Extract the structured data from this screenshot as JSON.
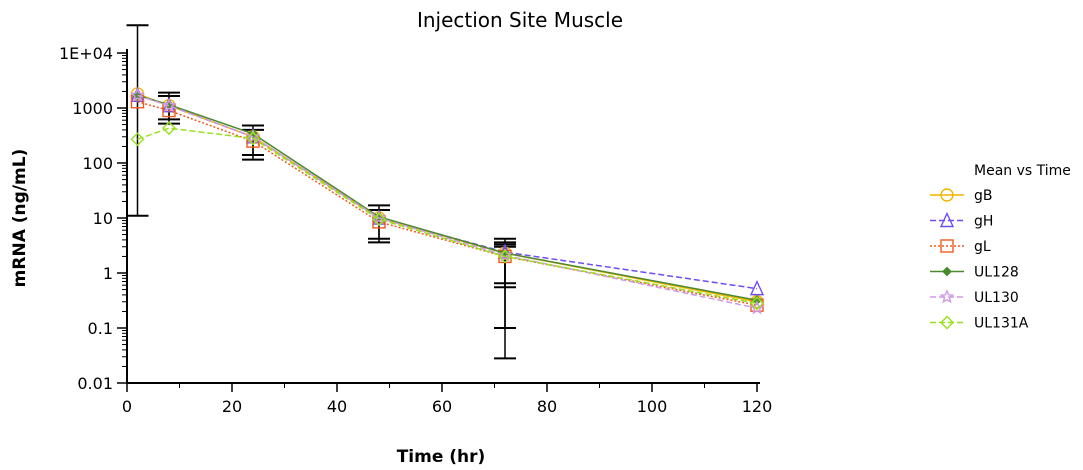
{
  "chart_data": {
    "type": "line",
    "title": "Injection Site Muscle",
    "xlabel": "Time (hr)",
    "ylabel": "mRNA (ng/mL)",
    "xlim": [
      0,
      120
    ],
    "ylim": [
      0.01,
      10000
    ],
    "yscale": "log",
    "grid": false,
    "legend_position": "right",
    "legend_title": "Mean vs Time",
    "x_ticks": [
      0,
      20,
      40,
      60,
      80,
      100,
      120
    ],
    "x_tick_labels": [
      "0",
      "20",
      "40",
      "60",
      "80",
      "100",
      "120"
    ],
    "y_ticks": [
      0.01,
      0.1,
      1,
      10,
      100,
      1000,
      10000
    ],
    "y_tick_labels": [
      "0.01",
      "0.1",
      "1",
      "10",
      "100",
      "1000",
      "1E+04"
    ],
    "x": [
      2,
      8,
      24,
      48,
      72,
      120
    ],
    "series": [
      {
        "name": "gB",
        "color": "#f0b400",
        "marker": "circle",
        "dash": "solid",
        "values": [
          1800,
          1100,
          300,
          10,
          2.3,
          0.3
        ]
      },
      {
        "name": "gH",
        "color": "#6f4cf5",
        "marker": "triangle",
        "dash": "dash",
        "values": [
          1700,
          1100,
          300,
          10,
          2.4,
          0.52
        ]
      },
      {
        "name": "gL",
        "color": "#ef5a1e",
        "marker": "square",
        "dash": "dot",
        "values": [
          1300,
          900,
          250,
          8.5,
          2.0,
          0.26
        ]
      },
      {
        "name": "UL128",
        "color": "#4a8a2c",
        "marker": "diamond-small",
        "dash": "solid",
        "values": [
          1700,
          1150,
          340,
          10.5,
          2.3,
          0.32
        ]
      },
      {
        "name": "UL130",
        "color": "#d09ae8",
        "marker": "star",
        "dash": "dash",
        "values": [
          1700,
          1100,
          300,
          10,
          2.1,
          0.23
        ]
      },
      {
        "name": "UL131A",
        "color": "#99e01c",
        "marker": "diamond",
        "dash": "dash",
        "values": [
          270,
          430,
          280,
          9.5,
          2.0,
          0.28
        ]
      }
    ],
    "error_bars": [
      {
        "x": 2,
        "low": 11,
        "high": 32000
      },
      {
        "x": 8,
        "low": 520,
        "high": 1900
      },
      {
        "x": 8,
        "low": 620,
        "high": 1650
      },
      {
        "x": 24,
        "low": 115,
        "high": 480
      },
      {
        "x": 24,
        "low": 140,
        "high": 400
      },
      {
        "x": 48,
        "low": 3.6,
        "high": 17
      },
      {
        "x": 48,
        "low": 4.2,
        "high": 14
      },
      {
        "x": 72,
        "low": 0.028,
        "high": 4.2
      },
      {
        "x": 72,
        "low": 0.1,
        "high": 3.6
      },
      {
        "x": 72,
        "low": 0.55,
        "high": 3.3
      },
      {
        "x": 72,
        "low": 0.65,
        "high": 3.0
      }
    ]
  }
}
